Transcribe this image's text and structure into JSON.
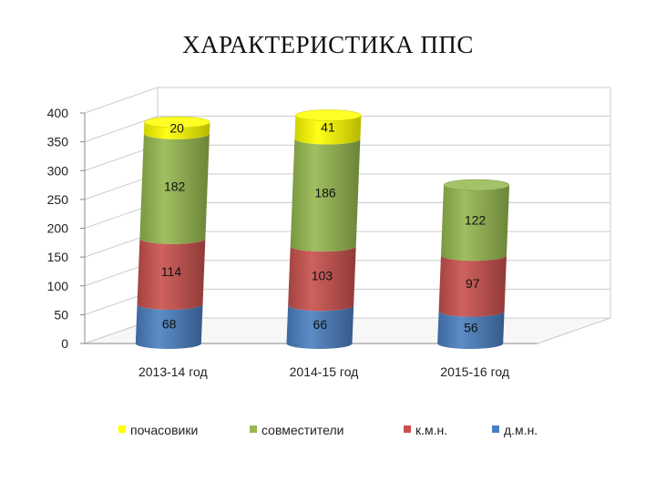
{
  "chart_data": {
    "type": "bar",
    "title": "ХАРАКТЕРИСТИКА  ППС",
    "categories": [
      "2013-14 год",
      "2014-15 год",
      "2015-16 год"
    ],
    "series": [
      {
        "name": "д.м.н.",
        "values": [
          68,
          66,
          56
        ],
        "color": "#4a7fc0"
      },
      {
        "name": "к.м.н.",
        "values": [
          114,
          103,
          97
        ],
        "color": "#c8504d"
      },
      {
        "name": "совместители",
        "values": [
          182,
          186,
          122
        ],
        "color": "#94b84e"
      },
      {
        "name": "почасовики",
        "values": [
          20,
          41,
          null
        ],
        "color": "#ffff00"
      }
    ],
    "legend_order": [
      "почасовики",
      "совместители",
      "к.м.н.",
      "д.м.н."
    ],
    "ylim": [
      0,
      400
    ],
    "yticks": [
      0,
      50,
      100,
      150,
      200,
      250,
      300,
      350,
      400
    ],
    "stacked": true,
    "grid": true,
    "legend_position": "bottom",
    "xlabel": "",
    "ylabel": ""
  }
}
